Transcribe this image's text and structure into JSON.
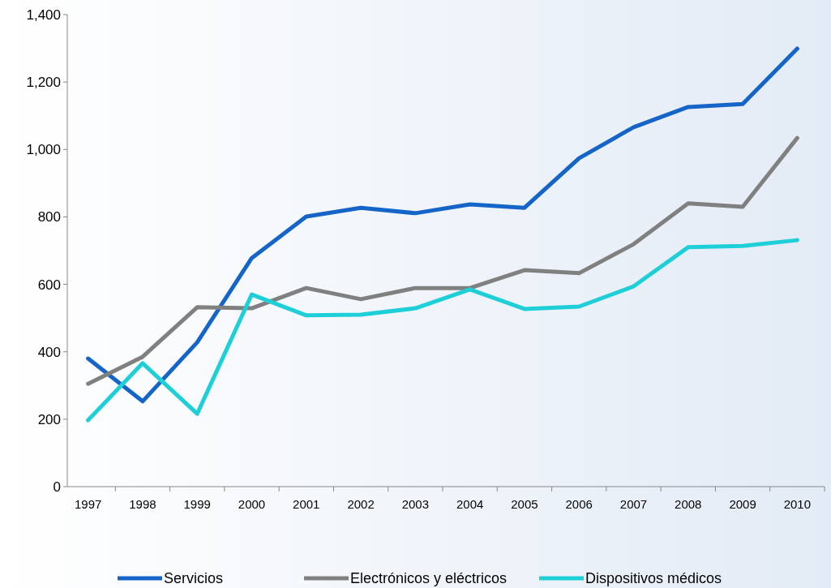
{
  "chart_data": {
    "type": "line",
    "categories": [
      "1997",
      "1998",
      "1999",
      "2000",
      "2001",
      "2002",
      "2003",
      "2004",
      "2005",
      "2006",
      "2007",
      "2008",
      "2009",
      "2010"
    ],
    "series": [
      {
        "name": "Servicios",
        "color": "#1565c8",
        "values": [
          380,
          253,
          428,
          678,
          801,
          827,
          811,
          837,
          827,
          974,
          1066,
          1126,
          1135,
          1299
        ]
      },
      {
        "name": "Electrónicos y eléctricos",
        "color": "#808080",
        "values": [
          305,
          385,
          532,
          529,
          589,
          556,
          589,
          589,
          642,
          633,
          719,
          840,
          830,
          1034
        ]
      },
      {
        "name": "Dispositivos médicos",
        "color": "#1fcfd8",
        "values": [
          197,
          366,
          216,
          570,
          508,
          510,
          529,
          585,
          527,
          534,
          594,
          710,
          714,
          731
        ]
      }
    ],
    "ylim": [
      0,
      1400
    ],
    "yticks": [
      {
        "value": 0,
        "label": "0"
      },
      {
        "value": 200,
        "label": "200"
      },
      {
        "value": 400,
        "label": "400"
      },
      {
        "value": 600,
        "label": "600"
      },
      {
        "value": 800,
        "label": "800"
      },
      {
        "value": 1000,
        "label": "1,000"
      },
      {
        "value": 1200,
        "label": "1,200"
      },
      {
        "value": 1400,
        "label": "1,400"
      }
    ],
    "grid": false,
    "legend": "bottom",
    "marker": "none",
    "line_style": "solid"
  }
}
